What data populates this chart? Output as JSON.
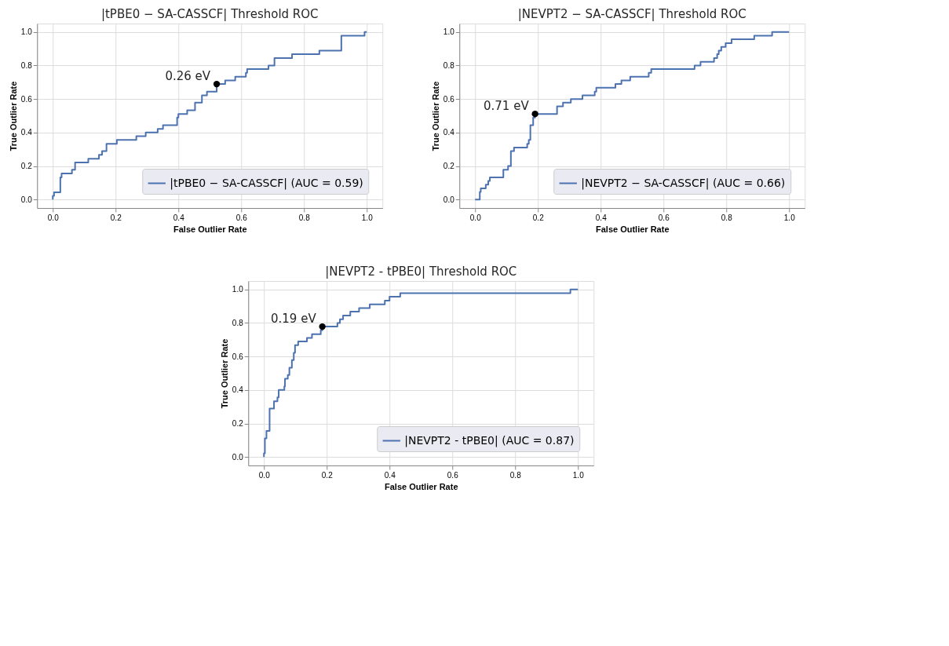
{
  "chart_data": [
    {
      "type": "step",
      "title": "|tPBE0 − SA-CASSCF| Threshold ROC",
      "xlabel": "False Outlier Rate",
      "ylabel": "True Outlier Rate",
      "xlim": [
        -0.05,
        1.05
      ],
      "ylim": [
        -0.05,
        1.05
      ],
      "xticks": [
        {
          "value": 0,
          "label": "0.0"
        },
        {
          "value": 0.2,
          "label": "0.2"
        },
        {
          "value": 0.4,
          "label": "0.4"
        },
        {
          "value": 0.6,
          "label": "0.6"
        },
        {
          "value": 0.8,
          "label": "0.8"
        },
        {
          "value": 1,
          "label": "1.0"
        }
      ],
      "yticks": [
        {
          "value": 0,
          "label": "0.0"
        },
        {
          "value": 0.2,
          "label": "0.2"
        },
        {
          "value": 0.4,
          "label": "0.4"
        },
        {
          "value": 0.6,
          "label": "0.6"
        },
        {
          "value": 0.8,
          "label": "0.8"
        },
        {
          "value": 1,
          "label": "1.0"
        }
      ],
      "grid": true,
      "legend": "bottom right",
      "series": [
        {
          "name": "|tPBE0 − SA-CASSCF| (AUC = 0.59)",
          "color": "#4c72b0",
          "x": [
            0,
            0,
            0.004,
            0.024,
            0.028,
            0.061,
            0.071,
            0.113,
            0.147,
            0.157,
            0.171,
            0.204,
            0.266,
            0.296,
            0.334,
            0.351,
            0.396,
            0.4,
            0.428,
            0.453,
            0.475,
            0.491,
            0.522,
            0.549,
            0.581,
            0.615,
            0.619,
            0.687,
            0.706,
            0.762,
            0.849,
            0.919,
            0.993,
            1.0
          ],
          "values": [
            0,
            0.022,
            0.044,
            0.133,
            0.156,
            0.178,
            0.222,
            0.244,
            0.267,
            0.289,
            0.333,
            0.356,
            0.378,
            0.4,
            0.422,
            0.444,
            0.489,
            0.511,
            0.533,
            0.578,
            0.622,
            0.644,
            0.689,
            0.711,
            0.733,
            0.756,
            0.778,
            0.8,
            0.844,
            0.867,
            0.889,
            0.978,
            1.0,
            1.0
          ]
        },
        {
          "type": "scatter",
          "color": "#000000",
          "x": [
            0.522
          ],
          "values": [
            0.689
          ]
        }
      ],
      "annotations": [
        {
          "text": "0.26 eV",
          "x": 0.522,
          "y": 0.689
        }
      ]
    },
    {
      "type": "step",
      "title": "|NEVPT2 − SA-CASSCF| Threshold ROC",
      "xlabel": "False Outlier Rate",
      "ylabel": "True Outlier Rate",
      "xlim": [
        -0.05,
        1.05
      ],
      "ylim": [
        -0.05,
        1.05
      ],
      "xticks": [
        {
          "value": 0,
          "label": "0.0"
        },
        {
          "value": 0.2,
          "label": "0.2"
        },
        {
          "value": 0.4,
          "label": "0.4"
        },
        {
          "value": 0.6,
          "label": "0.6"
        },
        {
          "value": 0.8,
          "label": "0.8"
        },
        {
          "value": 1,
          "label": "1.0"
        }
      ],
      "yticks": [
        {
          "value": 0,
          "label": "0.0"
        },
        {
          "value": 0.2,
          "label": "0.2"
        },
        {
          "value": 0.4,
          "label": "0.4"
        },
        {
          "value": 0.6,
          "label": "0.6"
        },
        {
          "value": 0.8,
          "label": "0.8"
        },
        {
          "value": 1,
          "label": "1.0"
        }
      ],
      "grid": true,
      "legend": "bottom right",
      "series": [
        {
          "name": "|NEVPT2 − SA-CASSCF| (AUC = 0.66)",
          "color": "#4c72b0",
          "x": [
            0,
            0.015,
            0.018,
            0.034,
            0.042,
            0.047,
            0.09,
            0.105,
            0.114,
            0.124,
            0.166,
            0.171,
            0.176,
            0.185,
            0.191,
            0.261,
            0.28,
            0.305,
            0.342,
            0.381,
            0.386,
            0.447,
            0.466,
            0.494,
            0.553,
            0.561,
            0.699,
            0.718,
            0.761,
            0.771,
            0.776,
            0.784,
            0.798,
            0.817,
            0.889,
            0.946,
            1.0
          ],
          "values": [
            0,
            0.046,
            0.067,
            0.089,
            0.111,
            0.133,
            0.178,
            0.2,
            0.289,
            0.311,
            0.333,
            0.356,
            0.444,
            0.489,
            0.511,
            0.556,
            0.578,
            0.6,
            0.622,
            0.644,
            0.667,
            0.689,
            0.711,
            0.733,
            0.756,
            0.778,
            0.8,
            0.822,
            0.844,
            0.867,
            0.889,
            0.911,
            0.933,
            0.956,
            0.978,
            1.0,
            1.0
          ]
        },
        {
          "type": "scatter",
          "color": "#000000",
          "x": [
            0.191
          ],
          "values": [
            0.511
          ]
        }
      ],
      "annotations": [
        {
          "text": "0.71 eV",
          "x": 0.191,
          "y": 0.511
        }
      ]
    },
    {
      "type": "step",
      "title": "|NEVPT2 - tPBE0| Threshold ROC",
      "xlabel": "False Outlier Rate",
      "ylabel": "True Outlier Rate",
      "xlim": [
        -0.05,
        1.05
      ],
      "ylim": [
        -0.05,
        1.05
      ],
      "xticks": [
        {
          "value": 0,
          "label": "0.0"
        },
        {
          "value": 0.2,
          "label": "0.2"
        },
        {
          "value": 0.4,
          "label": "0.4"
        },
        {
          "value": 0.6,
          "label": "0.6"
        },
        {
          "value": 0.8,
          "label": "0.8"
        },
        {
          "value": 1,
          "label": "1.0"
        }
      ],
      "yticks": [
        {
          "value": 0,
          "label": "0.0"
        },
        {
          "value": 0.2,
          "label": "0.2"
        },
        {
          "value": 0.4,
          "label": "0.4"
        },
        {
          "value": 0.6,
          "label": "0.6"
        },
        {
          "value": 0.8,
          "label": "0.8"
        },
        {
          "value": 1,
          "label": "1.0"
        }
      ],
      "grid": true,
      "legend": "bottom right",
      "series": [
        {
          "name": "|NEVPT2 - tPBE0| (AUC = 0.87)",
          "color": "#4c72b0",
          "x": [
            0,
            0,
            0.003,
            0.008,
            0.018,
            0.032,
            0.043,
            0.047,
            0.065,
            0.067,
            0.076,
            0.081,
            0.089,
            0.095,
            0.099,
            0.109,
            0.137,
            0.153,
            0.181,
            0.186,
            0.234,
            0.242,
            0.252,
            0.275,
            0.303,
            0.337,
            0.385,
            0.4,
            0.434,
            0.976,
            1.0
          ],
          "values": [
            0,
            0.022,
            0.111,
            0.156,
            0.289,
            0.333,
            0.356,
            0.4,
            0.422,
            0.467,
            0.489,
            0.533,
            0.578,
            0.622,
            0.667,
            0.689,
            0.711,
            0.733,
            0.756,
            0.778,
            0.8,
            0.822,
            0.844,
            0.867,
            0.889,
            0.911,
            0.933,
            0.956,
            0.978,
            1.0,
            1.0
          ]
        },
        {
          "type": "scatter",
          "color": "#000000",
          "x": [
            0.186
          ],
          "values": [
            0.778
          ]
        }
      ],
      "annotations": [
        {
          "text": "0.19 eV",
          "x": 0.186,
          "y": 0.778
        }
      ]
    }
  ]
}
